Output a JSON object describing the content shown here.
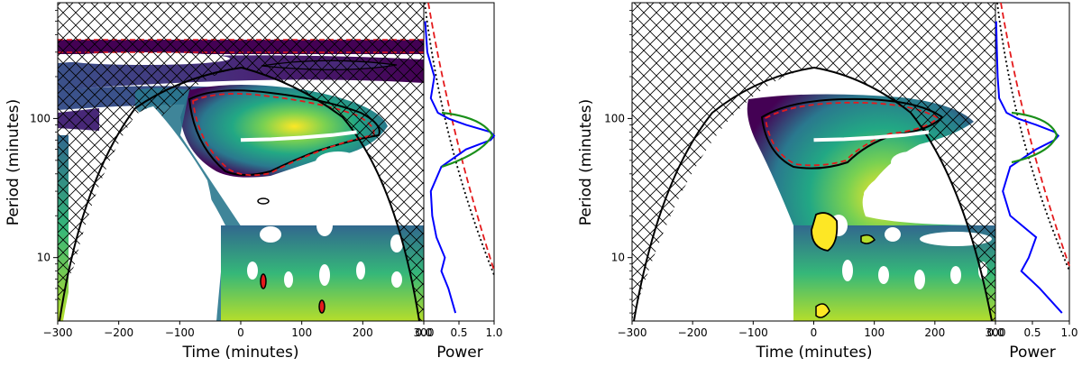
{
  "colors": {
    "cone_hatch": "#000000",
    "significance_contour": "#000000",
    "red_dashed": "#e41a1c",
    "global_power": "#0000ff",
    "global_significant": "#1a8f1a",
    "mean_period_track": "#ffffff",
    "colormap": "viridis"
  },
  "chart_data": [
    {
      "type": "heatmap",
      "panel": "left",
      "xlabel": "Time (minutes)",
      "ylabel": "Period (minutes)",
      "xlim": [
        -300,
        300
      ],
      "ylim": [
        3.5,
        680
      ],
      "yscale": "log",
      "x_ticks": [
        -300,
        -200,
        -100,
        0,
        100,
        200,
        300
      ],
      "x_tick_labels": [
        "−300",
        "−200",
        "−100",
        "0",
        "100",
        "200",
        "300"
      ],
      "y_ticks": [
        10,
        100
      ],
      "y_tick_labels": [
        "10",
        "100"
      ],
      "dominant_period_track": {
        "x": [
          0,
          50,
          100,
          150,
          190
        ],
        "y": [
          70,
          71,
          73,
          76,
          80
        ]
      },
      "significant_region": {
        "time_range": [
          -90,
          230
        ],
        "period_range": [
          40,
          130
        ]
      },
      "side_panel": {
        "xlabel": "Power",
        "xlim": [
          0,
          1
        ],
        "x_ticks": [
          0.0,
          0.5,
          1.0
        ],
        "x_tick_labels": [
          "0.0",
          "0.5",
          "1.0"
        ],
        "global_power": {
          "period": [
            4,
            6,
            8,
            10,
            14,
            20,
            30,
            45,
            60,
            70,
            75,
            80,
            90,
            100,
            110,
            140,
            200,
            300,
            500
          ],
          "power": [
            0.45,
            0.35,
            0.25,
            0.3,
            0.18,
            0.12,
            0.1,
            0.25,
            0.6,
            0.95,
            1.0,
            0.95,
            0.6,
            0.35,
            0.2,
            0.1,
            0.15,
            0.05,
            0.02
          ]
        }
      }
    },
    {
      "type": "heatmap",
      "panel": "right",
      "xlabel": "Time (minutes)",
      "ylabel": "Period (minutes)",
      "xlim": [
        -300,
        300
      ],
      "ylim": [
        3.5,
        680
      ],
      "yscale": "log",
      "x_ticks": [
        -300,
        -200,
        -100,
        0,
        100,
        200,
        300
      ],
      "x_tick_labels": [
        "−300",
        "−200",
        "−100",
        "0",
        "100",
        "200",
        "300"
      ],
      "y_ticks": [
        10,
        100
      ],
      "y_tick_labels": [
        "10",
        "100"
      ],
      "dominant_period_track": {
        "x": [
          0,
          50,
          100,
          150,
          190
        ],
        "y": [
          70,
          71,
          73,
          76,
          80
        ]
      },
      "significant_region": {
        "time_range": [
          -90,
          220
        ],
        "period_range": [
          42,
          125
        ]
      },
      "side_panel": {
        "xlabel": "Power",
        "xlim": [
          0,
          1
        ],
        "x_ticks": [
          0.0,
          0.5,
          1.0
        ],
        "x_tick_labels": [
          "0.0",
          "0.5",
          "1.0"
        ],
        "global_power": {
          "period": [
            4,
            6,
            8,
            10,
            14,
            20,
            30,
            45,
            60,
            70,
            75,
            80,
            90,
            100,
            110,
            140,
            200,
            300,
            500
          ],
          "power": [
            0.9,
            0.6,
            0.35,
            0.45,
            0.55,
            0.2,
            0.1,
            0.2,
            0.55,
            0.8,
            0.85,
            0.8,
            0.55,
            0.3,
            0.15,
            0.05,
            0.03,
            0.02,
            0.01
          ]
        }
      }
    }
  ]
}
